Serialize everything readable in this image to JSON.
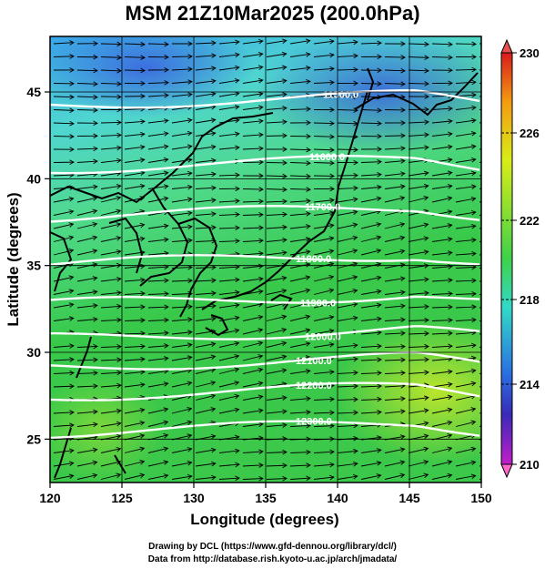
{
  "title": "MSM 21Z10Mar2025 (200.0hPa)",
  "axes": {
    "xlabel": "Longitude (degrees)",
    "ylabel": "Latitude  (degrees)",
    "x_ticks": [
      "120",
      "125",
      "130",
      "135",
      "140",
      "145",
      "150"
    ],
    "y_ticks": [
      "25",
      "30",
      "35",
      "40",
      "45"
    ]
  },
  "colorbar": {
    "labels": [
      "230",
      "226",
      "222",
      "218",
      "214",
      "210"
    ],
    "colors": [
      "#d81b1b",
      "#f39c12",
      "#d9ec18",
      "#3fd14a",
      "#32d9c8",
      "#2a6fe0",
      "#3a2ab8",
      "#c21ec8",
      "#ff66cc"
    ]
  },
  "contours": {
    "labels": [
      "11500.0",
      "11600.0",
      "11700.0",
      "11800.0",
      "11900.0",
      "12000.0",
      "12100.0",
      "12200.0",
      "12300.0"
    ]
  },
  "footer": {
    "line1": "Drawing by DCL (https://www.gfd-dennou.org/library/dcl/)",
    "line2": "Data from http://database.rish.kyoto-u.ac.jp/arch/jmadata/"
  }
}
